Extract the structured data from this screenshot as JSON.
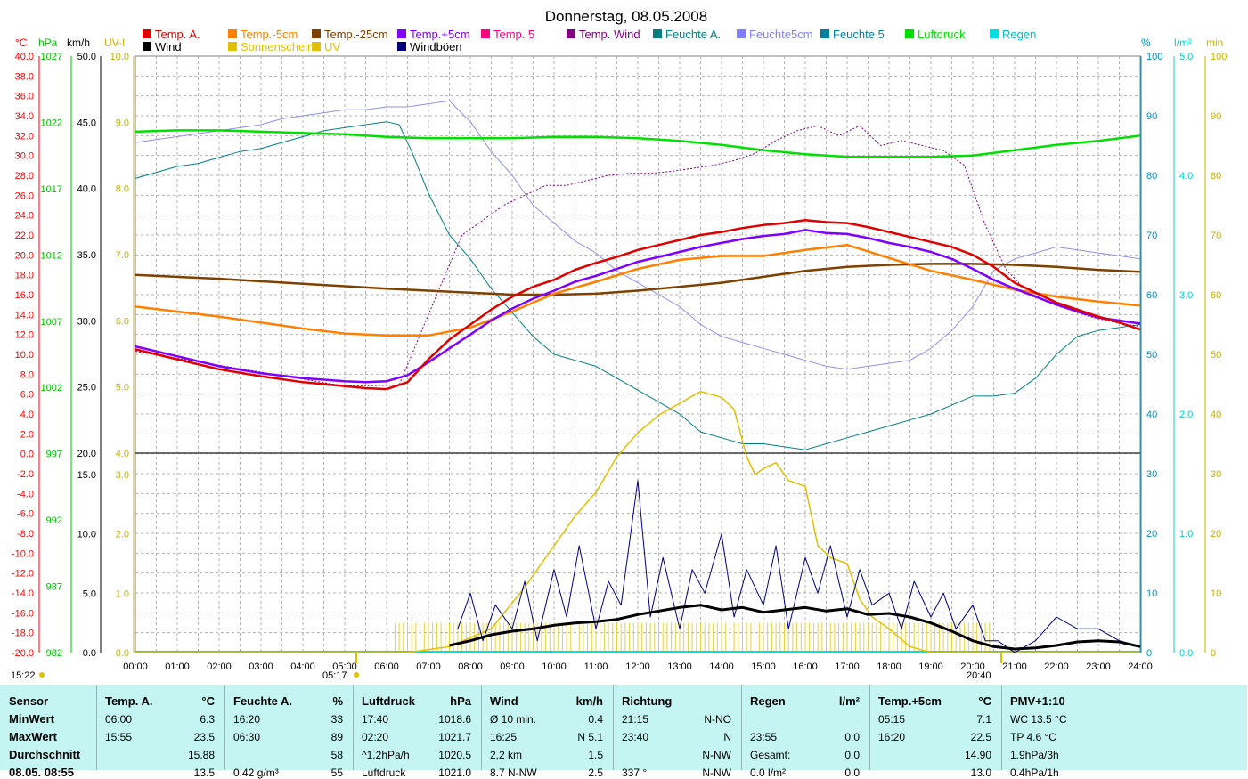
{
  "chart_data": {
    "type": "line",
    "title": "Donnerstag, 08.05.2008",
    "legend_row1": [
      {
        "name": "Temp. A.",
        "color": "#e00000"
      },
      {
        "name": "Temp.-5cm",
        "color": "#ff8000"
      },
      {
        "name": "Temp.-25cm",
        "color": "#804000"
      },
      {
        "name": "Temp.+5cm",
        "color": "#8000ff"
      },
      {
        "name": "Temp. 5",
        "color": "#ff0080"
      },
      {
        "name": "Temp. Wind",
        "color": "#800080"
      },
      {
        "name": "Feuchte A.",
        "color": "#008080"
      },
      {
        "name": "Feuchte5cm",
        "color": "#8080ff"
      },
      {
        "name": "Feuchte 5",
        "color": "#0080a0"
      },
      {
        "name": "Luftdruck",
        "color": "#00e000"
      },
      {
        "name": "Regen",
        "color": "#00e0e0"
      }
    ],
    "legend_row2": [
      {
        "name": "Wind",
        "color": "#000000"
      },
      {
        "name": "Sonnenschein",
        "color": "#e0c000"
      },
      {
        "name": "UV",
        "color": "#e0c000"
      },
      {
        "name": "Windböen",
        "color": "#000080"
      }
    ],
    "axis_headers": {
      "temp": "°C",
      "pressure": "hPa",
      "wind": "km/h",
      "uv": "UV-I",
      "humidity": "%",
      "rain": "l/m²",
      "sunshine": "min"
    },
    "y_temp_ticks": [
      "40.0",
      "38.0",
      "36.0",
      "34.0",
      "32.0",
      "30.0",
      "28.0",
      "26.0",
      "24.0",
      "22.0",
      "20.0",
      "18.0",
      "16.0",
      "14.0",
      "12.0",
      "10.0",
      "8.0",
      "6.0",
      "4.0",
      "2.0",
      "0.0",
      "-2.0",
      "-4.0",
      "-6.0",
      "-8.0",
      "-10.0",
      "-12.0",
      "-14.0",
      "-16.0",
      "-18.0",
      "-20.0"
    ],
    "y_pressure_ticks": [
      "1027",
      "1022",
      "1017",
      "1012",
      "1007",
      "1002",
      "997",
      "992",
      "987",
      "982"
    ],
    "y_wind_upper_ticks": [
      "50.0",
      "45.0",
      "40.0",
      "35.0",
      "30.0",
      "25.0",
      "20.0"
    ],
    "y_uv_upper_ticks": [
      "10.0",
      "9.0",
      "8.0",
      "7.0",
      "6.0",
      "5.0",
      "4.0"
    ],
    "y_wind_lower_ticks": [
      "15.0",
      "10.0",
      "5.0",
      "0.0"
    ],
    "y_uv_lower_ticks": [
      "3.0",
      "2.0",
      "1.0",
      "0.0"
    ],
    "y_humidity_ticks": [
      "100",
      "90",
      "80",
      "70",
      "60",
      "50",
      "40",
      "30",
      "20",
      "10",
      "0"
    ],
    "y_rain_ticks": [
      "5.0",
      "4.0",
      "3.0",
      "2.0",
      "1.0",
      "0.0"
    ],
    "y_sunshine_ticks": [
      "100",
      "90",
      "80",
      "70",
      "60",
      "50",
      "40",
      "30",
      "20",
      "10",
      "0"
    ],
    "x_ticks": [
      "00:00",
      "01:00",
      "02:00",
      "03:00",
      "04:00",
      "05:00",
      "06:00",
      "07:00",
      "08:00",
      "09:00",
      "10:00",
      "11:00",
      "12:00",
      "13:00",
      "14:00",
      "15:00",
      "16:00",
      "17:00",
      "18:00",
      "19:00",
      "20:00",
      "21:00",
      "22:00",
      "23:00",
      "24:00"
    ],
    "markers": {
      "moonrise": "15:22",
      "sunrise": "05:17",
      "sunset": "20:40"
    },
    "series": [
      {
        "name": "Temp. A.",
        "unit": "°C",
        "x": [
          0,
          1,
          2,
          3,
          4,
          5,
          5.5,
          6,
          6.5,
          7,
          7.5,
          8,
          8.5,
          9,
          9.5,
          10,
          10.5,
          11,
          11.5,
          12,
          12.5,
          13,
          13.5,
          14,
          14.5,
          15,
          15.5,
          16,
          16.5,
          17,
          17.5,
          18,
          18.5,
          19,
          19.5,
          20,
          20.5,
          21,
          21.5,
          22,
          22.5,
          23,
          23.5,
          24
        ],
        "y": [
          10.5,
          9.5,
          8.5,
          7.8,
          7.2,
          6.8,
          6.6,
          6.5,
          7.2,
          9.5,
          11.5,
          13,
          14.5,
          15.8,
          16.8,
          17.5,
          18.5,
          19.2,
          19.8,
          20.5,
          21,
          21.5,
          22,
          22.3,
          22.7,
          23,
          23.2,
          23.5,
          23.3,
          23.2,
          22.8,
          22.3,
          21.8,
          21.3,
          20.8,
          20,
          18.8,
          17.2,
          16.2,
          15.2,
          14.5,
          13.8,
          13.2,
          12.5
        ]
      },
      {
        "name": "Temp.-5cm",
        "unit": "°C",
        "x": [
          0,
          2,
          4,
          5,
          6,
          7,
          8,
          9,
          10,
          11,
          12,
          13,
          14,
          15,
          16,
          17,
          18,
          19,
          20,
          21,
          22,
          23,
          24
        ],
        "y": [
          14.8,
          13.8,
          12.6,
          12.1,
          11.9,
          11.9,
          12.7,
          14.3,
          16.1,
          17.3,
          18.6,
          19.5,
          19.9,
          19.9,
          20.5,
          21,
          19.7,
          18.4,
          17.5,
          16.5,
          15.8,
          15.3,
          14.9
        ]
      },
      {
        "name": "Temp.-25cm",
        "unit": "°C",
        "x": [
          0,
          2,
          4,
          6,
          8,
          9,
          10,
          11,
          12,
          13,
          14,
          15,
          16,
          17,
          18,
          19,
          20,
          21,
          22,
          23,
          24
        ],
        "y": [
          18,
          17.6,
          17.1,
          16.6,
          16.2,
          16,
          16,
          16.1,
          16.4,
          16.8,
          17.2,
          17.8,
          18.4,
          18.8,
          19,
          19.1,
          19.1,
          19,
          18.8,
          18.5,
          18.3
        ]
      },
      {
        "name": "Temp.+5cm",
        "unit": "°C",
        "x": [
          0,
          1,
          2,
          3,
          4,
          5,
          5.5,
          6,
          6.5,
          7,
          7.5,
          8,
          8.5,
          9,
          9.5,
          10,
          10.5,
          11,
          11.5,
          12,
          12.5,
          13,
          13.5,
          14,
          14.5,
          15,
          15.5,
          16,
          16.5,
          17,
          17.5,
          18,
          18.5,
          19,
          19.5,
          20,
          20.5,
          21,
          21.5,
          22,
          22.5,
          23,
          23.5,
          24
        ],
        "y": [
          10.8,
          9.8,
          8.8,
          8.1,
          7.6,
          7.3,
          7.2,
          7.3,
          7.9,
          9.2,
          10.6,
          12,
          13.4,
          14.6,
          15.6,
          16.4,
          17.3,
          17.9,
          18.6,
          19.3,
          19.8,
          20.3,
          20.8,
          21.2,
          21.6,
          21.9,
          22.1,
          22.5,
          22.2,
          22.1,
          21.7,
          21.2,
          20.8,
          20.3,
          19.6,
          18.6,
          17.5,
          16.6,
          15.8,
          15,
          14.3,
          13.7,
          13.4,
          13.1
        ]
      },
      {
        "name": "Feuchte A.",
        "unit": "%",
        "x": [
          0,
          0.5,
          1,
          1.5,
          2,
          2.5,
          3,
          3.5,
          4,
          4.5,
          5,
          5.5,
          6,
          6.3,
          6.6,
          7,
          7.5,
          8,
          8.5,
          9,
          9.5,
          10,
          10.5,
          11,
          11.5,
          12,
          12.5,
          13,
          13.5,
          14,
          14.5,
          15,
          15.5,
          16,
          16.5,
          17,
          17.5,
          18,
          18.5,
          19,
          19.5,
          20,
          20.5,
          21,
          21.5,
          22,
          22.5,
          23,
          23.5,
          24
        ],
        "y": [
          79.5,
          80.5,
          81.5,
          82,
          83,
          84,
          84.5,
          85.5,
          86.5,
          87.5,
          88,
          88.5,
          89,
          88.5,
          84,
          77,
          70,
          66,
          61,
          57,
          53,
          50,
          49,
          48,
          46,
          44,
          42,
          40,
          37,
          36,
          35,
          35,
          34.5,
          34,
          35,
          36,
          37,
          38,
          39,
          40,
          41.5,
          43,
          43,
          43.5,
          46,
          50,
          53,
          54,
          54.5,
          55
        ]
      },
      {
        "name": "Feuchte5cm",
        "unit": "%",
        "x": [
          0,
          0.5,
          1,
          1.5,
          2,
          2.5,
          3,
          3.5,
          4,
          4.5,
          5,
          5.5,
          6,
          6.5,
          7,
          7.5,
          8,
          8.5,
          9,
          9.5,
          10,
          10.5,
          11,
          11.5,
          12,
          12.5,
          13,
          13.5,
          14,
          14.5,
          15,
          15.5,
          16,
          16.5,
          17,
          17.5,
          18,
          18.5,
          19,
          19.5,
          20,
          20.5,
          21,
          21.5,
          22,
          22.5,
          23,
          23.5,
          24
        ],
        "y": [
          85.5,
          86,
          86.5,
          87,
          87.5,
          88,
          88.5,
          89.5,
          90,
          90.5,
          91,
          91,
          91.5,
          91.5,
          92,
          92.5,
          89,
          84,
          80,
          75,
          72,
          69,
          67,
          64,
          62,
          60,
          58,
          55,
          53,
          52,
          51,
          50,
          49,
          48,
          47.5,
          48,
          48.5,
          49,
          51,
          54,
          58,
          64,
          66,
          67,
          68,
          67.5,
          67,
          66.5,
          66
        ]
      },
      {
        "name": "Luftdruck",
        "unit": "hPa",
        "x": [
          0,
          1,
          2,
          3,
          4,
          5,
          6,
          7,
          8,
          9,
          10,
          11,
          12,
          13,
          14,
          15,
          16,
          17,
          18,
          19,
          20,
          21,
          22,
          23,
          24
        ],
        "y": [
          1021.3,
          1021.4,
          1021.4,
          1021.3,
          1021.2,
          1021.1,
          1020.9,
          1020.8,
          1020.8,
          1020.8,
          1020.9,
          1020.9,
          1020.8,
          1020.6,
          1020.3,
          1019.9,
          1019.6,
          1019.4,
          1019.4,
          1019.4,
          1019.5,
          1019.9,
          1020.3,
          1020.6,
          1021
        ]
      },
      {
        "name": "Temp. Wind",
        "unit": "°C",
        "x": [
          0,
          5,
          6.3,
          6.8,
          7.3,
          7.8,
          8.3,
          8.8,
          9.3,
          9.8,
          10.3,
          10.8,
          11.3,
          11.8,
          12.3,
          12.8,
          13.3,
          13.8,
          14.3,
          14.8,
          15.3,
          15.8,
          16.3,
          16.8,
          17.3,
          17.8,
          18.3,
          18.8,
          19.3,
          19.8,
          20.3,
          20.8,
          21.3,
          21.8,
          22.3,
          22.8,
          23.3,
          24
        ],
        "y": [
          10.3,
          6.8,
          6.9,
          12,
          17,
          22,
          23.5,
          25,
          26,
          27,
          27,
          27.5,
          28,
          28.2,
          28.2,
          28.4,
          28.7,
          29,
          29.5,
          30.2,
          31.5,
          32.5,
          33,
          32,
          33,
          31,
          31.5,
          31,
          30.5,
          29,
          23,
          18.5,
          16.3,
          15.2,
          14.5,
          13.8,
          13.3,
          12.8
        ]
      },
      {
        "name": "Sonnenschein",
        "unit": "min",
        "x": [
          6.2,
          24
        ],
        "y": [
          5,
          0
        ]
      },
      {
        "name": "UV",
        "unit": "UV-I",
        "x": [
          0,
          6.5,
          7.5,
          8.5,
          9.3,
          10,
          10.5,
          11,
          11.5,
          12,
          12.5,
          13,
          13.5,
          14,
          14.3,
          14.6,
          14.8,
          15,
          15.3,
          15.6,
          16,
          16.3,
          16.6,
          17,
          17.3,
          17.6,
          18,
          18.5,
          19,
          19.5,
          20,
          24
        ],
        "y": [
          0,
          0,
          0.1,
          0.4,
          1.1,
          1.8,
          2.3,
          2.7,
          3.3,
          3.7,
          4,
          4.2,
          4.4,
          4.3,
          4.1,
          3.3,
          3,
          3.1,
          3.2,
          2.9,
          2.8,
          1.8,
          1.6,
          1.5,
          0.9,
          0.6,
          0.4,
          0.1,
          0,
          0,
          0,
          0
        ]
      },
      {
        "name": "Wind",
        "unit": "km/h",
        "x": [
          7.5,
          8,
          8.5,
          9,
          9.5,
          10,
          10.5,
          11,
          11.5,
          12,
          12.5,
          13,
          13.5,
          14,
          14.5,
          15,
          15.5,
          16,
          16.5,
          17,
          17.5,
          18,
          18.5,
          19,
          19.5,
          20,
          20.5,
          21,
          21.5,
          22,
          22.5,
          23,
          23.5,
          24
        ],
        "y": [
          0.6,
          1,
          1.5,
          1.8,
          2,
          2.3,
          2.5,
          2.6,
          2.8,
          3.2,
          3.5,
          3.8,
          4,
          3.6,
          3.8,
          3.4,
          3.6,
          3.8,
          3.5,
          3.7,
          3.2,
          3.3,
          3,
          2.5,
          1.8,
          1,
          0.5,
          0.3,
          0.4,
          0.6,
          0.9,
          1,
          0.9,
          0.5
        ]
      },
      {
        "name": "Windböen",
        "unit": "km/h",
        "x": [
          7.7,
          8,
          8.3,
          8.6,
          9,
          9.3,
          9.6,
          10,
          10.3,
          10.6,
          11,
          11.3,
          11.6,
          12,
          12.3,
          12.6,
          13,
          13.3,
          13.6,
          14,
          14.3,
          14.6,
          15,
          15.3,
          15.6,
          16,
          16.3,
          16.6,
          17,
          17.3,
          17.6,
          18,
          18.3,
          18.6,
          19,
          19.3,
          19.6,
          20,
          20.3,
          20.6,
          21,
          21.5,
          22,
          22.5,
          23,
          23.5,
          24
        ],
        "y": [
          2,
          5,
          1,
          4,
          2,
          6,
          1,
          7,
          3,
          9,
          2,
          6,
          4,
          14.5,
          3,
          8,
          2,
          7,
          5,
          10,
          3,
          7,
          4,
          9,
          2,
          8,
          5,
          9,
          3,
          7,
          4,
          5,
          2,
          6,
          3,
          5,
          2,
          4,
          1,
          1,
          0,
          1,
          3,
          2,
          2,
          1,
          0.5
        ]
      }
    ]
  },
  "stats": {
    "row_labels": [
      "Sensor",
      "MinWert",
      "MaxWert",
      "Durchschnitt",
      "08.05. 08:55"
    ],
    "columns": [
      {
        "h1": "Temp. A.",
        "h2": "°C",
        "rows": [
          [
            "06:00",
            "6.3"
          ],
          [
            "15:55",
            "23.5"
          ],
          [
            "",
            "15.88"
          ],
          [
            "",
            "13.5"
          ]
        ]
      },
      {
        "h1": "Feuchte A.",
        "h2": "%",
        "rows": [
          [
            "16:20",
            "33"
          ],
          [
            "06:30",
            "89"
          ],
          [
            "",
            "58"
          ],
          [
            "0.42 g/m³",
            "55"
          ]
        ]
      },
      {
        "h1": "Luftdruck",
        "h2": "hPa",
        "rows": [
          [
            "17:40",
            "1018.6"
          ],
          [
            "02:20",
            "1021.7"
          ],
          [
            "^1.2hPa/h",
            "1020.5"
          ],
          [
            "Luftdruck",
            "1021.0"
          ]
        ]
      },
      {
        "h1": "Wind",
        "h2": "km/h",
        "rows": [
          [
            "Ø 10 min.",
            "0.4"
          ],
          [
            "16:25",
            "N 5.1"
          ],
          [
            "2,2 km",
            "1.5"
          ],
          [
            "8.7 N-NW",
            "2.5"
          ]
        ]
      },
      {
        "h1": "Richtung",
        "h2": "",
        "rows": [
          [
            "21:15",
            "N-NO"
          ],
          [
            "23:40",
            "N"
          ],
          [
            "",
            "N-NW"
          ],
          [
            "337 °",
            "N-NW"
          ]
        ]
      },
      {
        "h1": "Regen",
        "h2": "l/m²",
        "rows": [
          [
            "",
            ""
          ],
          [
            "23:55",
            "0.0"
          ],
          [
            "Gesamt:",
            "0.0"
          ],
          [
            "0.0 l/m²",
            "0.0"
          ]
        ]
      },
      {
        "h1": "Temp.+5cm",
        "h2": "°C",
        "rows": [
          [
            "05:15",
            "7.1"
          ],
          [
            "16:20",
            "22.5"
          ],
          [
            "",
            "14.90"
          ],
          [
            "",
            "13.0"
          ]
        ]
      },
      {
        "h1": "PMV+1:10",
        "h2": "",
        "rows": [
          [
            "WC 13.5 °C",
            ""
          ],
          [
            "TP 4.6 °C",
            ""
          ],
          [
            "1.9hPa/3h",
            ""
          ],
          [
            "0.4hPa/1h",
            ""
          ]
        ]
      }
    ]
  }
}
